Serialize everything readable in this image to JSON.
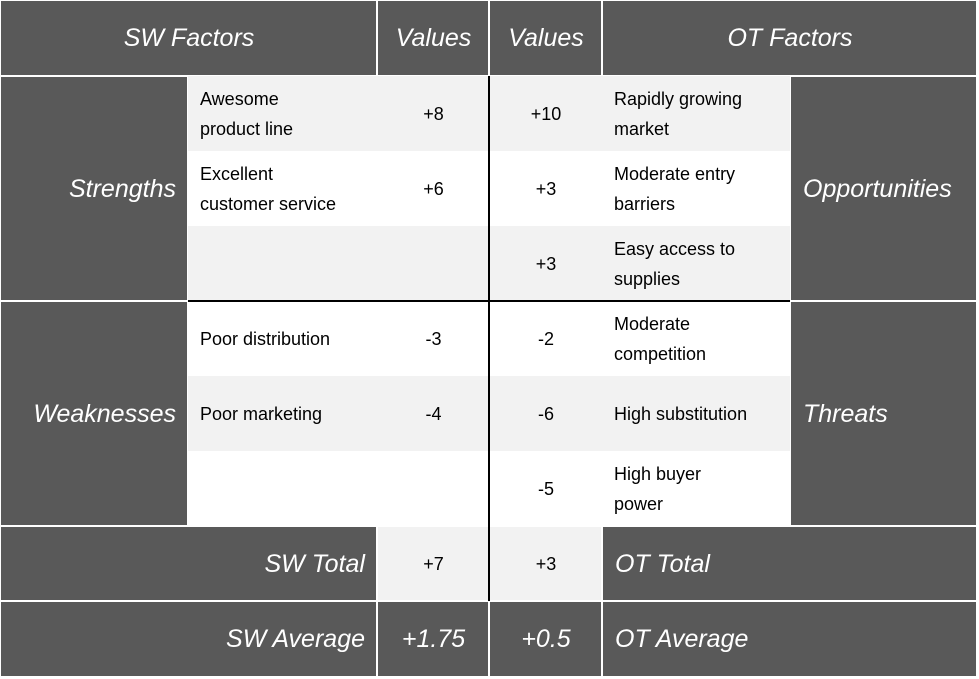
{
  "header": [
    "SW Factors",
    "Values",
    "Values",
    "OT Factors"
  ],
  "sections": [
    {
      "sw_label": "Strengths",
      "ot_label": "Opportunities",
      "rows": [
        {
          "sw_factor": [
            "Awesome",
            "product line"
          ],
          "sw_value": "+8",
          "ot_value": "+10",
          "ot_factor": [
            "Rapidly growing",
            "market"
          ]
        },
        {
          "sw_factor": [
            "Excellent",
            "customer service"
          ],
          "sw_value": "+6",
          "ot_value": "+3",
          "ot_factor": [
            "Moderate entry",
            "barriers"
          ]
        },
        {
          "ot_value": "+3",
          "ot_factor": [
            "Easy access to",
            "supplies"
          ]
        }
      ]
    },
    {
      "sw_label": "Weaknesses",
      "ot_label": "Threats",
      "rows": [
        {
          "sw_factor": [
            "Poor distribution"
          ],
          "sw_value": "-3",
          "ot_value": "-2",
          "ot_factor": [
            "Moderate",
            "competition"
          ]
        },
        {
          "sw_factor": [
            "Poor marketing"
          ],
          "sw_value": "-4",
          "ot_value": "-6",
          "ot_factor": [
            "High substitution"
          ]
        },
        {
          "ot_value": "-5",
          "ot_factor": [
            "High buyer",
            "power"
          ]
        }
      ]
    }
  ],
  "totals": [
    {
      "sw_label": "SW Total",
      "sw_value": "+7",
      "ot_value": "+3",
      "ot_label": "OT Total"
    },
    {
      "sw_label": "SW Average",
      "sw_value": "+1.75",
      "ot_value": "+0.5",
      "ot_label": "OT Average"
    }
  ]
}
